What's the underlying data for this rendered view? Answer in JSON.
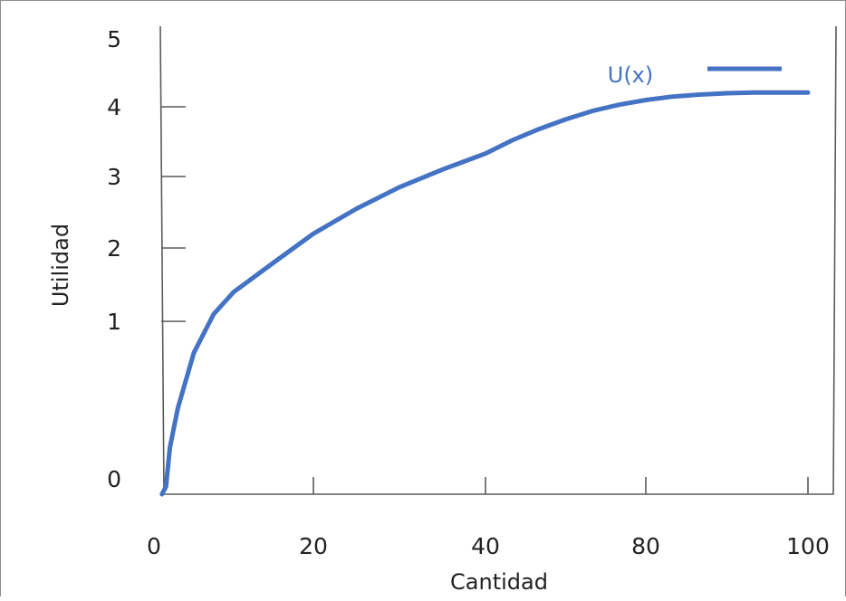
{
  "chart_data": {
    "type": "line",
    "title": "",
    "xlabel": "Cantidad",
    "ylabel": "Utilidad",
    "x_ticks": [
      "0",
      "20",
      "40",
      "80",
      "100"
    ],
    "y_ticks": [
      "0",
      "1",
      "2",
      "3",
      "4",
      "5"
    ],
    "grid": false,
    "legend_position": "top-right",
    "series": [
      {
        "name": "U(x)",
        "color": "#4472c4",
        "x": [
          1,
          1.5,
          2,
          3,
          5,
          7.5,
          10,
          15,
          20,
          25,
          30,
          35,
          40,
          45,
          50,
          55,
          60,
          65,
          70,
          75,
          80,
          85,
          90,
          95,
          100
        ],
        "y": [
          -0.3,
          -0.05,
          0.2,
          0.45,
          0.8,
          1.1,
          1.4,
          1.8,
          2.2,
          2.55,
          2.85,
          3.1,
          3.33,
          3.52,
          3.68,
          3.82,
          3.94,
          4.03,
          4.1,
          4.15,
          4.18,
          4.2,
          4.21,
          4.21,
          4.21
        ]
      }
    ]
  }
}
